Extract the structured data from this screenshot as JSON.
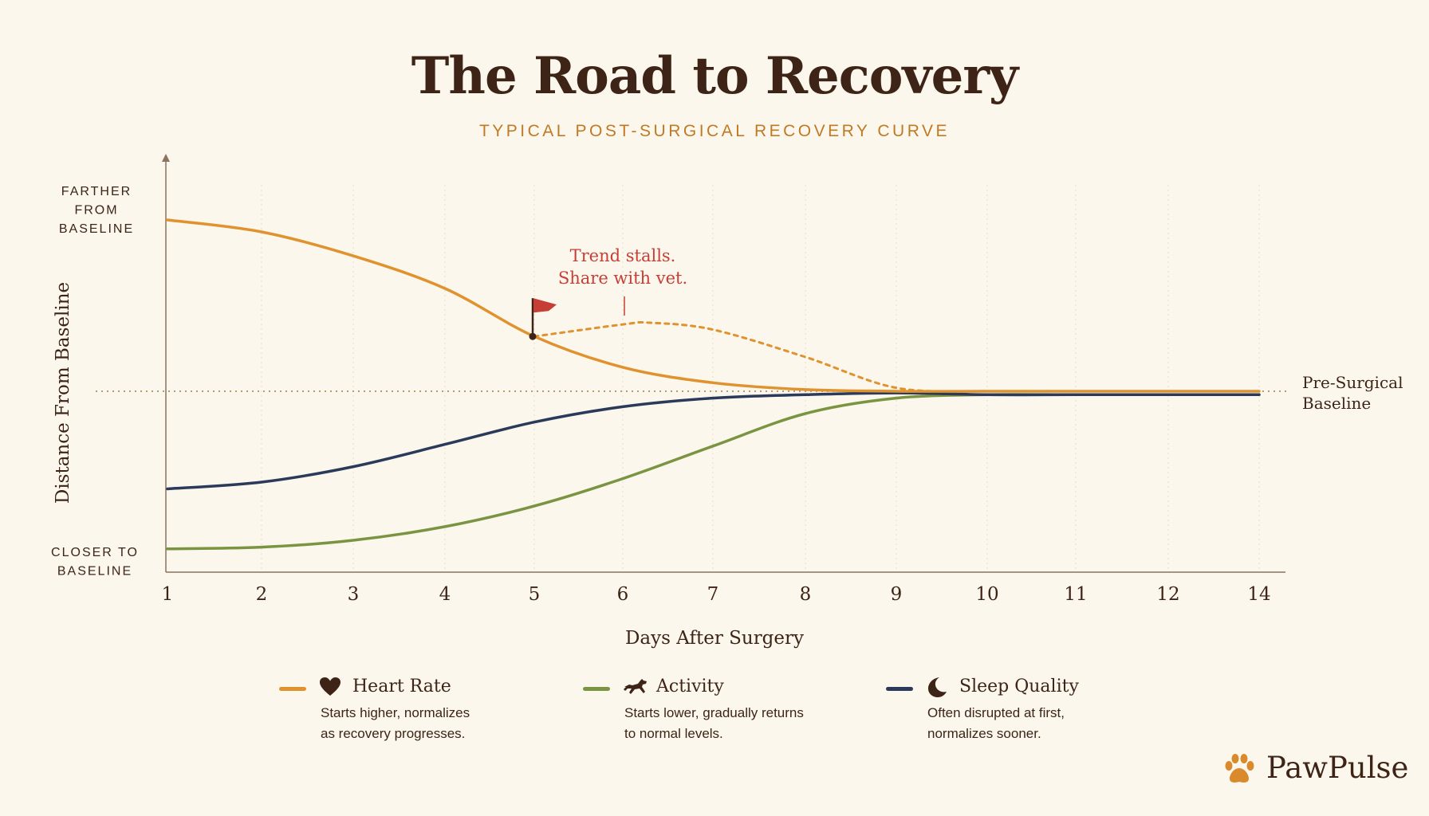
{
  "header": {
    "title": "The Road to Recovery",
    "subtitle": "TYPICAL POST-SURGICAL RECOVERY CURVE"
  },
  "chart_data": {
    "type": "line",
    "x": [
      1,
      2,
      3,
      4,
      5,
      6,
      7,
      8,
      9,
      10,
      11,
      12,
      14
    ],
    "xticks": [
      "1",
      "2",
      "3",
      "4",
      "5",
      "6",
      "7",
      "8",
      "9",
      "10",
      "11",
      "12",
      "14"
    ],
    "xlabel": "Days After Surgery",
    "ylabel": "Distance From Baseline",
    "y_top_label": [
      "FARTHER",
      "FROM",
      "BASELINE"
    ],
    "y_bottom_label": [
      "CLOSER TO",
      "BASELINE"
    ],
    "ylim": [
      -1,
      1.1
    ],
    "grid": "vertical-dotted",
    "baseline": {
      "value": 0,
      "label": [
        "Pre-Surgical",
        "Baseline"
      ]
    },
    "series": [
      {
        "name": "Heart Rate",
        "color": "#e0922f",
        "x": [
          1,
          2,
          3,
          4,
          5,
          6,
          7,
          8,
          9,
          10,
          11,
          12,
          14
        ],
        "values": [
          1.0,
          0.93,
          0.79,
          0.6,
          0.32,
          0.14,
          0.05,
          0.01,
          0.0,
          0.0,
          0.0,
          0.0,
          0.0
        ]
      },
      {
        "name": "Activity",
        "color": "#7b9442",
        "x": [
          1,
          2,
          3,
          4,
          5,
          6,
          7,
          8,
          9,
          10,
          11,
          12,
          14
        ],
        "values": [
          -0.92,
          -0.91,
          -0.87,
          -0.79,
          -0.67,
          -0.51,
          -0.32,
          -0.13,
          -0.04,
          -0.02,
          -0.02,
          -0.02,
          -0.02
        ]
      },
      {
        "name": "Sleep Quality",
        "color": "#2b3a5b",
        "x": [
          1,
          2,
          3,
          4,
          5,
          6,
          7,
          8,
          9,
          10,
          11,
          12,
          14
        ],
        "values": [
          -0.57,
          -0.53,
          -0.44,
          -0.31,
          -0.18,
          -0.09,
          -0.04,
          -0.02,
          -0.01,
          -0.02,
          -0.02,
          -0.02,
          -0.02
        ]
      },
      {
        "name": "Heart Rate (stalled)",
        "color": "#e0922f",
        "style": "dotted",
        "x": [
          5,
          6,
          6.3,
          7,
          8,
          9,
          10
        ],
        "values": [
          0.32,
          0.39,
          0.4,
          0.36,
          0.2,
          0.02,
          0.0
        ]
      }
    ],
    "annotations": [
      {
        "text": [
          "Trend stalls.",
          "Share with vet."
        ],
        "x": 6,
        "color": "#c73e36",
        "marker": "flag-icon",
        "marker_x": 5,
        "marker_y": 0.32
      }
    ]
  },
  "legend": [
    {
      "name": "Heart Rate",
      "color": "#e0922f",
      "icon": "heart-icon",
      "description": [
        "Starts higher, normalizes",
        "as recovery progresses."
      ]
    },
    {
      "name": "Activity",
      "color": "#7b9442",
      "icon": "running-dog-icon",
      "description": [
        "Starts lower, gradually returns",
        "to normal levels."
      ]
    },
    {
      "name": "Sleep Quality",
      "color": "#2b3a5b",
      "icon": "moon-icon",
      "description": [
        "Often disrupted at first,",
        "normalizes sooner."
      ]
    }
  ],
  "brand": {
    "name": "PawPulse",
    "icon": "paw-icon",
    "color": "#d98a2a"
  }
}
